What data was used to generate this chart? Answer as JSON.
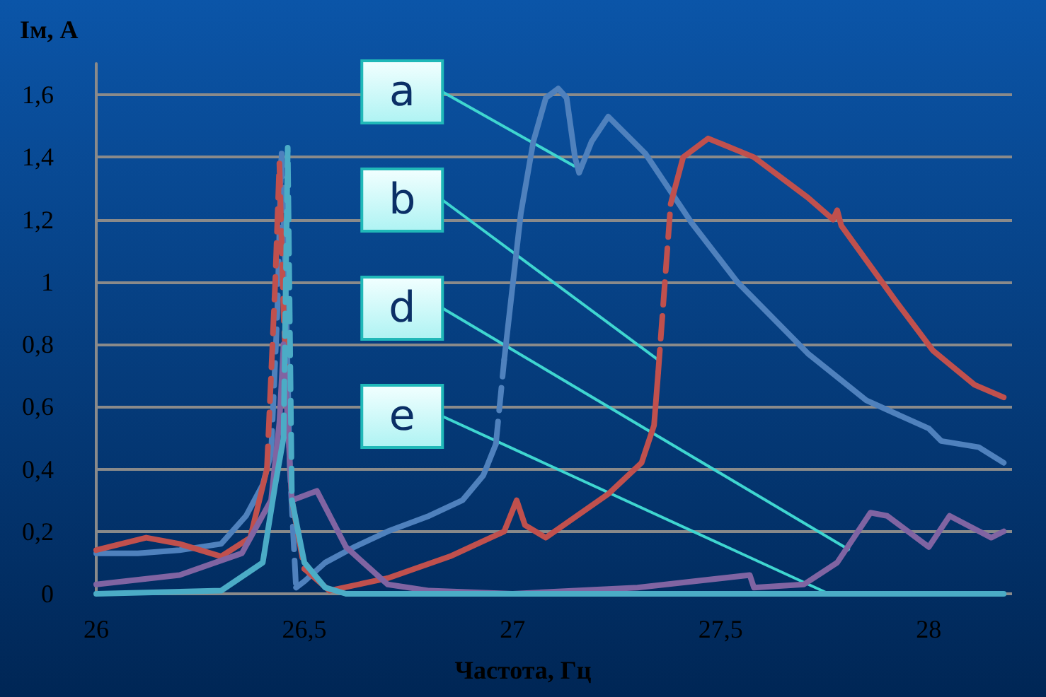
{
  "chart_data": {
    "type": "line",
    "xlabel": "Частота, Гц",
    "ylabel": "Iм, А",
    "xlim": [
      26,
      28.2
    ],
    "xticks": [
      26,
      {
        "value": 26.5,
        "label": "26,5"
      },
      27,
      {
        "value": 27.5,
        "label": "27,5"
      },
      28
    ],
    "ylim": [
      0,
      1.7
    ],
    "yticks": [
      0,
      {
        "value": 0.2,
        "label": "0,2"
      },
      {
        "value": 0.4,
        "label": "0,4"
      },
      {
        "value": 0.6,
        "label": "0,6"
      },
      {
        "value": 0.8,
        "label": "0,8"
      },
      1,
      {
        "value": 1.2,
        "label": "1,2"
      },
      {
        "value": 1.4,
        "label": "1,4"
      },
      {
        "value": 1.6,
        "label": "1,6"
      }
    ],
    "grid": "y",
    "marker": "none",
    "line_style": "solid",
    "series": [
      {
        "color": "#4f81bd",
        "x": [
          26,
          26.1,
          26.2,
          26.3,
          26.36,
          26.4,
          26.42
        ],
        "values": [
          0.13,
          0.13,
          0.14,
          0.16,
          0.25,
          0.35,
          0.45
        ]
      },
      {
        "color": "#4f81bd",
        "line_style": "dashed",
        "x": [
          26.42,
          26.435,
          26.445,
          26.455,
          26.465,
          26.48
        ],
        "values": [
          0.45,
          0.9,
          1.42,
          1.0,
          0.4,
          0.02
        ]
      },
      {
        "color": "#4f81bd",
        "x": [
          26.48,
          26.5,
          26.55,
          26.62,
          26.7,
          26.8,
          26.88,
          26.93,
          26.96
        ],
        "values": [
          0.02,
          0.04,
          0.1,
          0.15,
          0.2,
          0.25,
          0.3,
          0.38,
          0.48
        ]
      },
      {
        "color": "#4f81bd",
        "line_style": "dashed",
        "x": [
          26.96,
          26.98
        ],
        "values": [
          0.48,
          0.75
        ]
      },
      {
        "color": "#4f81bd",
        "x": [
          26.98,
          27.02,
          27.05,
          27.08,
          27.11,
          27.13,
          27.15,
          27.16,
          27.19,
          27.23,
          27.32,
          27.43,
          27.54,
          27.71,
          27.85,
          28.0,
          28.03,
          28.12,
          28.18
        ],
        "values": [
          0.75,
          1.22,
          1.45,
          1.59,
          1.62,
          1.59,
          1.4,
          1.35,
          1.45,
          1.53,
          1.41,
          1.19,
          1.0,
          0.77,
          0.62,
          0.53,
          0.49,
          0.47,
          0.42
        ]
      },
      {
        "color": "#c0504d",
        "x": [
          26,
          26.12,
          26.2,
          26.3,
          26.37,
          26.41
        ],
        "values": [
          0.14,
          0.18,
          0.16,
          0.12,
          0.18,
          0.4
        ]
      },
      {
        "color": "#c0504d",
        "line_style": "dashed",
        "x": [
          26.41,
          26.43,
          26.44,
          26.45,
          26.47,
          26.5
        ],
        "values": [
          0.4,
          1.0,
          1.38,
          0.9,
          0.3,
          0.08
        ]
      },
      {
        "color": "#c0504d",
        "x": [
          26.5,
          26.56,
          26.7,
          26.85,
          26.98,
          27.01,
          27.03,
          27.08,
          27.23,
          27.31,
          27.34,
          27.35
        ],
        "values": [
          0.08,
          0.01,
          0.05,
          0.12,
          0.2,
          0.3,
          0.22,
          0.18,
          0.32,
          0.42,
          0.54,
          0.71
        ]
      },
      {
        "color": "#c0504d",
        "line_style": "dashed",
        "x": [
          27.35,
          27.38
        ],
        "values": [
          0.71,
          1.25
        ]
      },
      {
        "color": "#c0504d",
        "x": [
          27.38,
          27.41,
          27.47,
          27.58,
          27.71,
          27.77,
          27.78,
          27.79,
          27.92,
          28.01,
          28.11,
          28.18
        ],
        "values": [
          1.25,
          1.4,
          1.46,
          1.4,
          1.27,
          1.2,
          1.23,
          1.18,
          0.94,
          0.78,
          0.67,
          0.63
        ]
      },
      {
        "color": "#8064a2",
        "x": [
          26,
          26.2,
          26.35,
          26.42,
          26.44,
          26.45,
          26.47,
          26.53,
          26.6,
          26.7,
          26.8,
          27.0,
          27.3,
          27.57,
          27.58,
          27.7,
          27.78,
          27.86,
          27.9,
          28.0,
          28.05,
          28.15,
          28.18
        ],
        "values": [
          0.03,
          0.06,
          0.13,
          0.3,
          0.55,
          0.8,
          0.3,
          0.33,
          0.15,
          0.03,
          0.01,
          0,
          0.02,
          0.06,
          0.02,
          0.03,
          0.1,
          0.26,
          0.25,
          0.15,
          0.25,
          0.18,
          0.2
        ]
      },
      {
        "color": "#4bacc6",
        "x": [
          26,
          26.3,
          26.4,
          26.43,
          26.45
        ],
        "values": [
          0,
          0.01,
          0.1,
          0.35,
          0.5
        ]
      },
      {
        "color": "#4bacc6",
        "line_style": "dashed",
        "x": [
          26.45,
          26.46,
          26.47
        ],
        "values": [
          0.5,
          1.43,
          0.3
        ]
      },
      {
        "color": "#4bacc6",
        "x": [
          26.47,
          26.5,
          26.55,
          26.6,
          28.18
        ],
        "values": [
          0.3,
          0.1,
          0.02,
          0,
          0
        ]
      }
    ],
    "annotations": [
      {
        "text": "a",
        "x": 27.15,
        "y": 1.37
      },
      {
        "text": "b",
        "x": 27.35,
        "y": 0.75
      },
      {
        "text": "d",
        "x": 27.81,
        "y": 0.14
      },
      {
        "text": "e",
        "x": 27.76,
        "y": 0
      }
    ]
  }
}
